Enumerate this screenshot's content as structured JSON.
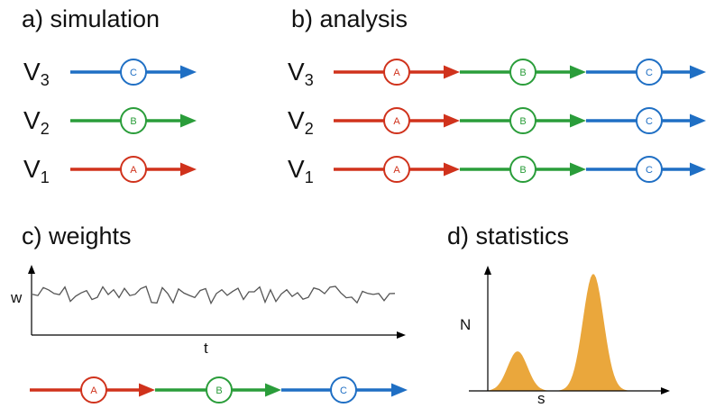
{
  "panels": {
    "simulation": {
      "title": "a) simulation"
    },
    "analysis": {
      "title": "b) analysis"
    },
    "weights": {
      "title": "c) weights",
      "xlabel": "t",
      "ylabel": "w"
    },
    "statistics": {
      "title": "d) statistics",
      "xlabel": "s",
      "ylabel": "N"
    }
  },
  "rows": [
    {
      "letter": "V",
      "sub": "3"
    },
    {
      "letter": "V",
      "sub": "2"
    },
    {
      "letter": "V",
      "sub": "1"
    }
  ],
  "nodes": {
    "A": "A",
    "B": "B",
    "C": "C"
  },
  "colors": {
    "A": "#d0321c",
    "B": "#2a9d3a",
    "C": "#1f6fc4",
    "dist": "#eaa73c",
    "noise": "#555555",
    "axis": "#000000"
  },
  "simulation_nodes": [
    "C",
    "B",
    "A"
  ],
  "analysis_sequence": [
    "A",
    "B",
    "C"
  ],
  "weights_sequence": [
    "A",
    "B",
    "C"
  ]
}
